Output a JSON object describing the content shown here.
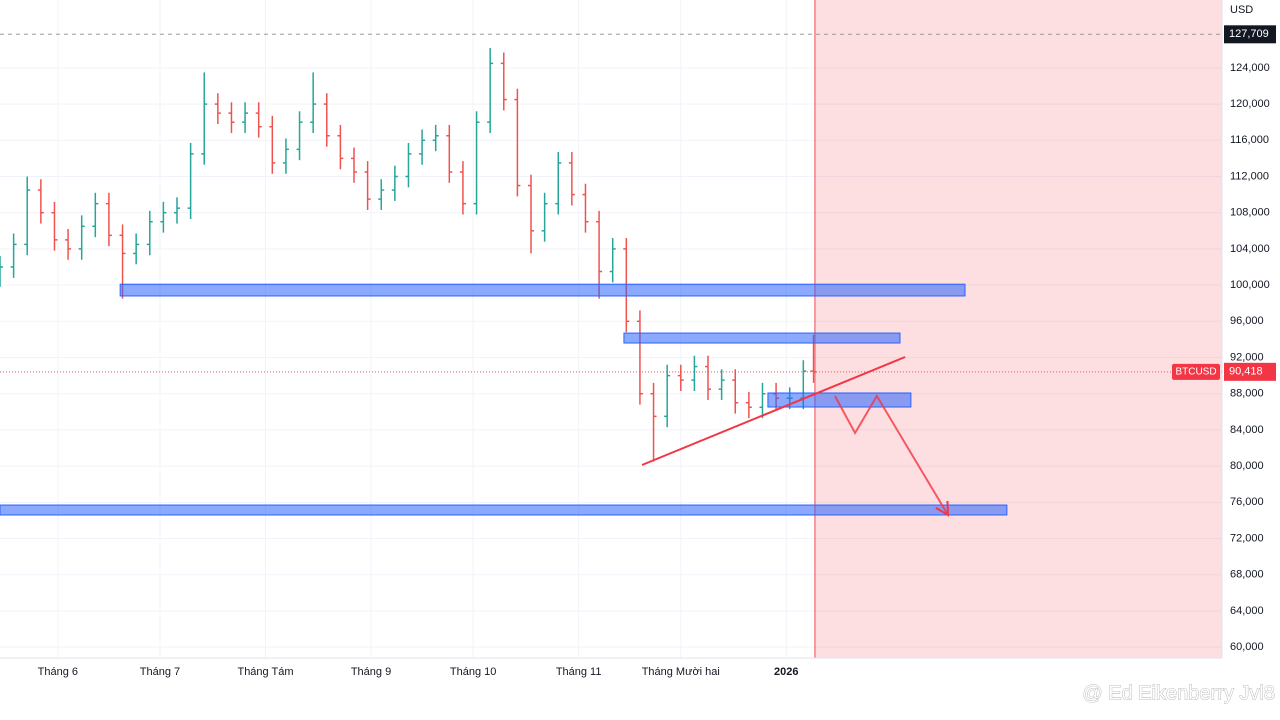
{
  "chart_data": {
    "type": "ohlc",
    "unit": "USD",
    "x": [
      -17,
      -13,
      -9,
      -5,
      -1,
      3,
      7,
      11,
      15,
      19,
      23,
      27,
      31,
      35,
      39,
      43,
      47,
      51,
      55,
      59,
      63,
      67,
      71,
      75,
      79,
      83,
      87,
      91,
      95,
      99,
      103,
      107,
      111,
      115,
      119,
      123,
      127,
      131,
      135,
      139,
      143,
      147,
      151,
      155,
      159,
      163,
      167,
      171,
      175,
      179,
      183,
      187,
      191,
      195,
      199,
      203,
      207,
      211,
      215,
      219,
      222
    ],
    "open": [
      101000,
      102000,
      104500,
      110500,
      108000,
      105000,
      104000,
      106500,
      109000,
      105500,
      103500,
      104500,
      107000,
      108000,
      108500,
      114500,
      120000,
      119000,
      118000,
      119000,
      117500,
      113500,
      115000,
      118000,
      120000,
      116500,
      114000,
      112500,
      109500,
      110500,
      112000,
      114500,
      116000,
      116500,
      112500,
      109000,
      118000,
      124500,
      120500,
      111000,
      106000,
      109000,
      113500,
      110000,
      107000,
      101500,
      104000,
      96000,
      88000,
      85500,
      90000,
      89500,
      91000,
      88500,
      89500,
      87000,
      86500,
      88000,
      87500,
      87500,
      90500
    ],
    "high": [
      103200,
      105700,
      112000,
      111700,
      109200,
      106200,
      107700,
      110200,
      110200,
      106700,
      105700,
      108200,
      109200,
      109700,
      115700,
      123500,
      121200,
      120200,
      120200,
      120200,
      118700,
      116200,
      119200,
      123500,
      121200,
      117700,
      115200,
      113700,
      111700,
      113200,
      115700,
      117200,
      117700,
      117700,
      113700,
      119200,
      126200,
      125700,
      121700,
      112200,
      110200,
      114700,
      114700,
      111200,
      108200,
      105200,
      105200,
      97200,
      89200,
      91200,
      91200,
      92200,
      92200,
      90700,
      90700,
      88200,
      89200,
      89200,
      88700,
      91700,
      94500
    ],
    "low": [
      99800,
      100800,
      103300,
      106800,
      103800,
      102800,
      102800,
      105300,
      104300,
      98500,
      102300,
      103300,
      105800,
      106800,
      107300,
      113300,
      117800,
      116800,
      116800,
      116300,
      112300,
      112300,
      113800,
      116800,
      115300,
      112800,
      111300,
      108300,
      108300,
      109300,
      110800,
      113300,
      114800,
      111300,
      107800,
      107800,
      116800,
      119300,
      109800,
      103500,
      104800,
      107800,
      108800,
      105800,
      98500,
      100300,
      94800,
      86800,
      80500,
      84300,
      88300,
      88300,
      87300,
      87300,
      85800,
      85300,
      85300,
      86300,
      86300,
      86300,
      89200
    ],
    "close": [
      102000,
      104500,
      110500,
      108000,
      105000,
      104000,
      106500,
      109000,
      105500,
      103500,
      104500,
      107000,
      108000,
      108500,
      114500,
      120000,
      119000,
      118000,
      119000,
      117500,
      113500,
      115000,
      118000,
      120000,
      116500,
      114000,
      112500,
      109500,
      110500,
      112000,
      114500,
      116000,
      116500,
      112500,
      109000,
      118000,
      124500,
      120500,
      111000,
      106000,
      109000,
      113500,
      110000,
      107000,
      101500,
      104000,
      96000,
      88000,
      85500,
      90000,
      89500,
      91000,
      88500,
      89500,
      87000,
      86500,
      88000,
      87500,
      87500,
      90500,
      90418
    ],
    "up_color": "#26a69a",
    "down_color": "#ef5350",
    "xlim": [
      -17,
      342
    ],
    "ylim": [
      58800,
      131500
    ],
    "xticks": [
      {
        "value": 0,
        "label": "Tháng 6"
      },
      {
        "value": 30,
        "label": "Tháng 7"
      },
      {
        "value": 61,
        "label": "Tháng Tám"
      },
      {
        "value": 92,
        "label": "Tháng 9"
      },
      {
        "value": 122,
        "label": "Tháng 10"
      },
      {
        "value": 153,
        "label": "Tháng 11"
      },
      {
        "value": 183,
        "label": "Tháng Mười hai"
      },
      {
        "value": 214,
        "label": "2026"
      }
    ],
    "yticks": [
      {
        "value": 60000,
        "label": "60,000"
      },
      {
        "value": 64000,
        "label": "64,000"
      },
      {
        "value": 68000,
        "label": "68,000"
      },
      {
        "value": 72000,
        "label": "72,000"
      },
      {
        "value": 76000,
        "label": "76,000"
      },
      {
        "value": 80000,
        "label": "80,000"
      },
      {
        "value": 84000,
        "label": "84,000"
      },
      {
        "value": 88000,
        "label": "88,000"
      },
      {
        "value": 92000,
        "label": "92,000"
      },
      {
        "value": 96000,
        "label": "96,000"
      },
      {
        "value": 100000,
        "label": "100,000"
      },
      {
        "value": 104000,
        "label": "104,000"
      },
      {
        "value": 108000,
        "label": "108,000"
      },
      {
        "value": 112000,
        "label": "112,000"
      },
      {
        "value": 116000,
        "label": "116,000"
      },
      {
        "value": 120000,
        "label": "120,000"
      },
      {
        "value": 124000,
        "label": "124,000"
      }
    ],
    "grid": true,
    "high_line": {
      "value": 127709,
      "label": "127,709"
    },
    "price_line": {
      "name": "BTCUSD",
      "value": 90418,
      "label": "90,418"
    },
    "zones": [
      {
        "x": [
          18.3,
          266.5
        ],
        "y": [
          98800,
          100100
        ]
      },
      {
        "x": [
          166.3,
          247.4
        ],
        "y": [
          93600,
          94700
        ]
      },
      {
        "x": [
          208.6,
          250.6
        ],
        "y": [
          86530,
          88080
        ]
      },
      {
        "x": [
          -17,
          278.8
        ],
        "y": [
          74600,
          75700
        ]
      }
    ],
    "zone_color": "#2962ff",
    "future_region": {
      "x": 222.4,
      "color": "#f23645"
    },
    "trendline": {
      "x": [
        171.6,
        248.9
      ],
      "y": [
        80124,
        92056
      ]
    },
    "projection": {
      "x": [
        228.3,
        234.2,
        240.6,
        261.5
      ],
      "y": [
        87750,
        83660,
        87750,
        74600
      ]
    },
    "drawing_color": "#f23645",
    "watermark": "@ Ed Eikenberry Jvl8"
  }
}
